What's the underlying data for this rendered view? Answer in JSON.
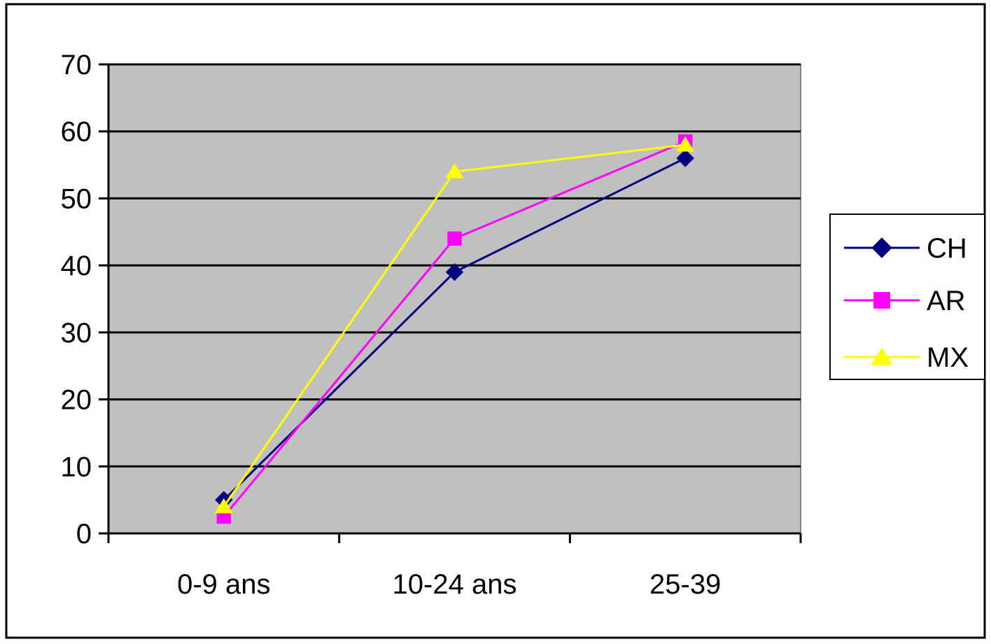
{
  "chart_data": {
    "type": "line",
    "title": "",
    "xlabel": "",
    "ylabel": "",
    "categories": [
      "0-9 ans",
      "10-24 ans",
      "25-39"
    ],
    "ylim": [
      0,
      70
    ],
    "yticks": [
      "0",
      "10",
      "20",
      "30",
      "40",
      "50",
      "60",
      "70"
    ],
    "grid": true,
    "legend_position": "right",
    "plot_background": "#c0c0c0",
    "series": [
      {
        "name": "CH",
        "values": [
          5,
          39,
          56
        ],
        "color": "#000080",
        "marker": "diamond"
      },
      {
        "name": "AR",
        "values": [
          2.5,
          44,
          58.5
        ],
        "color": "#ff00ff",
        "marker": "square"
      },
      {
        "name": "MX",
        "values": [
          4,
          54,
          58
        ],
        "color": "#ffff00",
        "marker": "triangle"
      }
    ]
  }
}
